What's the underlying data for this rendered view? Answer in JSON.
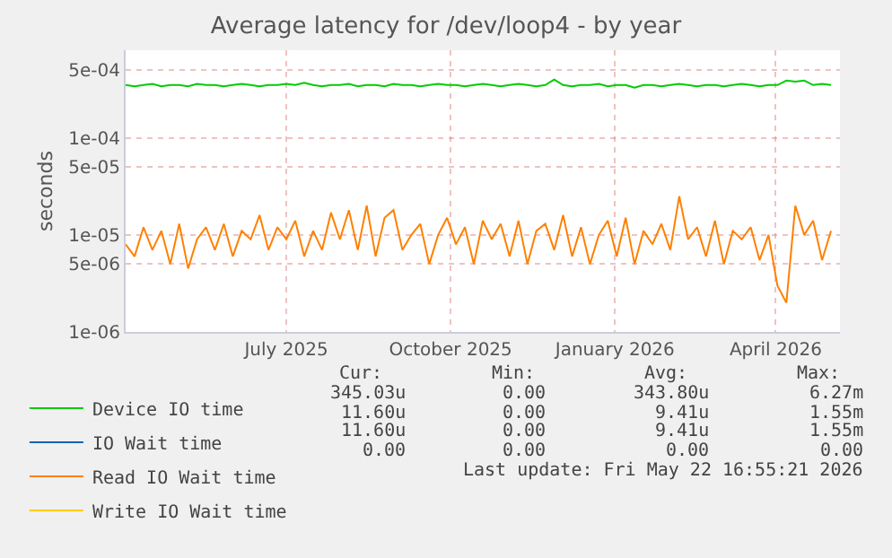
{
  "chart_data": {
    "type": "line",
    "title": "Average latency for /dev/loop4 - by year",
    "ylabel": "seconds",
    "x": [
      "2025-04-17",
      "2025-04-22",
      "2025-04-27",
      "2025-05-02",
      "2025-05-07",
      "2025-05-12",
      "2025-05-17",
      "2025-05-22",
      "2025-05-27",
      "2025-06-01",
      "2025-06-06",
      "2025-06-11",
      "2025-06-16",
      "2025-06-21",
      "2025-06-26",
      "2025-07-01",
      "2025-07-06",
      "2025-07-11",
      "2025-07-16",
      "2025-07-21",
      "2025-07-26",
      "2025-07-31",
      "2025-08-05",
      "2025-08-10",
      "2025-08-15",
      "2025-08-20",
      "2025-08-25",
      "2025-08-30",
      "2025-09-04",
      "2025-09-09",
      "2025-09-14",
      "2025-09-19",
      "2025-09-24",
      "2025-09-29",
      "2025-10-04",
      "2025-10-09",
      "2025-10-14",
      "2025-10-19",
      "2025-10-24",
      "2025-10-29",
      "2025-11-03",
      "2025-11-08",
      "2025-11-13",
      "2025-11-18",
      "2025-11-23",
      "2025-11-28",
      "2025-12-03",
      "2025-12-08",
      "2025-12-13",
      "2025-12-18",
      "2025-12-23",
      "2025-12-28",
      "2026-01-02",
      "2026-01-07",
      "2026-01-12",
      "2026-01-17",
      "2026-01-22",
      "2026-01-27",
      "2026-02-01",
      "2026-02-06",
      "2026-02-11",
      "2026-02-16",
      "2026-02-21",
      "2026-02-26",
      "2026-03-03",
      "2026-03-08",
      "2026-03-13",
      "2026-03-18",
      "2026-03-23",
      "2026-03-28",
      "2026-04-02",
      "2026-04-07",
      "2026-04-12",
      "2026-04-17",
      "2026-04-22",
      "2026-04-27",
      "2026-05-02",
      "2026-05-07",
      "2026-05-12",
      "2026-05-17"
    ],
    "series": [
      {
        "name": "Device IO time",
        "color": "#00cc00",
        "values": [
          0.00035,
          0.00034,
          0.00035,
          0.00036,
          0.00034,
          0.00035,
          0.00035,
          0.00034,
          0.00036,
          0.00035,
          0.00035,
          0.00034,
          0.00035,
          0.00036,
          0.00035,
          0.00034,
          0.00035,
          0.00035,
          0.00036,
          0.00035,
          0.00037,
          0.00035,
          0.00034,
          0.00035,
          0.00035,
          0.00036,
          0.00034,
          0.00035,
          0.00035,
          0.00034,
          0.00036,
          0.00035,
          0.00035,
          0.00034,
          0.00035,
          0.00036,
          0.00035,
          0.00035,
          0.00034,
          0.00035,
          0.00036,
          0.00035,
          0.00034,
          0.00035,
          0.00036,
          0.00035,
          0.00034,
          0.00035,
          0.0004,
          0.00035,
          0.00034,
          0.00035,
          0.00035,
          0.00036,
          0.00034,
          0.00035,
          0.00035,
          0.00033,
          0.00035,
          0.00035,
          0.00034,
          0.00035,
          0.00036,
          0.00035,
          0.00034,
          0.00035,
          0.00035,
          0.00034,
          0.00035,
          0.00036,
          0.00035,
          0.00034,
          0.00035,
          0.00035,
          0.00039,
          0.00038,
          0.00039,
          0.00035,
          0.00036,
          0.00035
        ]
      },
      {
        "name": "IO Wait time",
        "color": "#0066b3",
        "values": [
          null,
          null,
          null,
          null,
          null,
          null,
          null,
          null,
          null,
          null,
          null,
          null,
          null,
          null,
          null,
          null,
          null,
          null,
          null,
          null,
          null,
          null,
          null,
          null,
          null,
          null,
          null,
          null,
          null,
          null,
          null,
          null,
          null,
          null,
          null,
          null,
          null,
          null,
          null,
          null,
          null,
          null,
          null,
          null,
          null,
          null,
          null,
          null,
          null,
          null,
          null,
          null,
          null,
          null,
          null,
          null,
          null,
          null,
          null,
          null,
          null,
          null,
          null,
          null,
          null,
          null,
          null,
          null,
          null,
          null,
          null,
          null,
          null,
          null,
          null,
          null,
          null,
          null,
          null,
          null
        ]
      },
      {
        "name": "Read IO Wait time",
        "color": "#ff8000",
        "values": [
          8e-06,
          6e-06,
          1.2e-05,
          7e-06,
          1.1e-05,
          5e-06,
          1.3e-05,
          4.5e-06,
          9e-06,
          1.2e-05,
          7e-06,
          1.3e-05,
          6e-06,
          1.1e-05,
          9e-06,
          1.6e-05,
          7e-06,
          1.2e-05,
          9e-06,
          1.4e-05,
          6e-06,
          1.1e-05,
          7e-06,
          1.7e-05,
          9e-06,
          1.8e-05,
          7e-06,
          2e-05,
          6e-06,
          1.5e-05,
          1.8e-05,
          7e-06,
          1e-05,
          1.3e-05,
          5e-06,
          1e-05,
          1.5e-05,
          8e-06,
          1.2e-05,
          5e-06,
          1.4e-05,
          9e-06,
          1.3e-05,
          6e-06,
          1.4e-05,
          5e-06,
          1.1e-05,
          1.3e-05,
          7e-06,
          1.6e-05,
          6e-06,
          1.2e-05,
          5e-06,
          1e-05,
          1.4e-05,
          6e-06,
          1.5e-05,
          5e-06,
          1.1e-05,
          8e-06,
          1.3e-05,
          7e-06,
          2.5e-05,
          9e-06,
          1.2e-05,
          6e-06,
          1.4e-05,
          5e-06,
          1.1e-05,
          9e-06,
          1.2e-05,
          5.5e-06,
          1e-05,
          3e-06,
          2e-06,
          2e-05,
          1e-05,
          1.4e-05,
          5.5e-06,
          1.1e-05
        ]
      },
      {
        "name": "Write IO Wait time",
        "color": "#ffcc00",
        "values": [
          null,
          null,
          null,
          null,
          null,
          null,
          null,
          null,
          null,
          null,
          null,
          null,
          null,
          null,
          null,
          null,
          null,
          null,
          null,
          null,
          null,
          null,
          null,
          null,
          null,
          null,
          null,
          null,
          null,
          null,
          null,
          null,
          null,
          null,
          null,
          null,
          null,
          null,
          null,
          null,
          null,
          null,
          null,
          null,
          null,
          null,
          null,
          null,
          null,
          null,
          null,
          null,
          null,
          null,
          null,
          null,
          null,
          null,
          null,
          null,
          null,
          null,
          null,
          null,
          null,
          null,
          null,
          null,
          null,
          null,
          null,
          null,
          null,
          null,
          null,
          null,
          null,
          null,
          null,
          null
        ]
      }
    ],
    "log": "y",
    "ylim": [
      1e-06,
      0.0008
    ],
    "yticks": [
      {
        "value": 1e-06,
        "label": "1e-06"
      },
      {
        "value": 5e-06,
        "label": "5e-06"
      },
      {
        "value": 1e-05,
        "label": "1e-05"
      },
      {
        "value": 5e-05,
        "label": "5e-05"
      },
      {
        "value": 0.0001,
        "label": "1e-04"
      },
      {
        "value": 0.0005,
        "label": "5e-04"
      }
    ],
    "xlim": [
      "2025-04-17",
      "2026-05-22"
    ],
    "xticks": [
      {
        "value": "2025-07-16",
        "label": "July 2025"
      },
      {
        "value": "2025-10-16",
        "label": "October 2025"
      },
      {
        "value": "2026-01-16",
        "label": "January 2026"
      },
      {
        "value": "2026-04-16",
        "label": "April 2026"
      }
    ],
    "grid": true,
    "legend": "bottom left",
    "line_style": "solid",
    "marker": "none",
    "annotations": [
      "Cur:",
      "Min:",
      "Avg:",
      "Max:",
      "345.03u",
      "0.00",
      "343.80u",
      "6.27m",
      "11.60u",
      "0.00",
      "9.41u",
      "1.55m",
      "11.60u",
      "0.00",
      "9.41u",
      "1.55m",
      "0.00",
      "0.00",
      "0.00",
      "0.00",
      "Last update: Fri May 22 16:55:21 2026"
    ]
  }
}
